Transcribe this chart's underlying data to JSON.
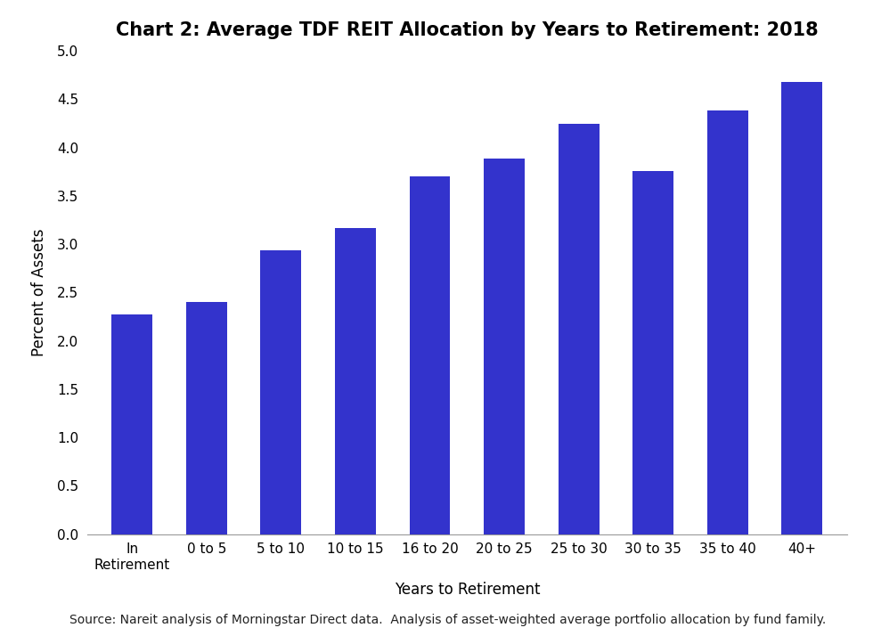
{
  "title": "Chart 2: Average TDF REIT Allocation by Years to Retirement: 2018",
  "categories": [
    "In\nRetirement",
    "0 to 5",
    "5 to 10",
    "10 to 15",
    "16 to 20",
    "20 to 25",
    "25 to 30",
    "30 to 35",
    "35 to 40",
    "40+"
  ],
  "values": [
    2.27,
    2.4,
    2.94,
    3.17,
    3.7,
    3.89,
    4.25,
    3.76,
    4.38,
    4.68
  ],
  "bar_color": "#3333CC",
  "ylabel": "Percent of Assets",
  "xlabel": "Years to Retirement",
  "ylim": [
    0.0,
    5.0
  ],
  "yticks": [
    0.0,
    0.5,
    1.0,
    1.5,
    2.0,
    2.5,
    3.0,
    3.5,
    4.0,
    4.5,
    5.0
  ],
  "source_text": "Source: Nareit analysis of Morningstar Direct data.  Analysis of asset-weighted average portfolio allocation by fund family.",
  "background_color": "#ffffff",
  "title_fontsize": 15,
  "axis_label_fontsize": 12,
  "tick_fontsize": 11,
  "source_fontsize": 10,
  "bar_width": 0.55
}
